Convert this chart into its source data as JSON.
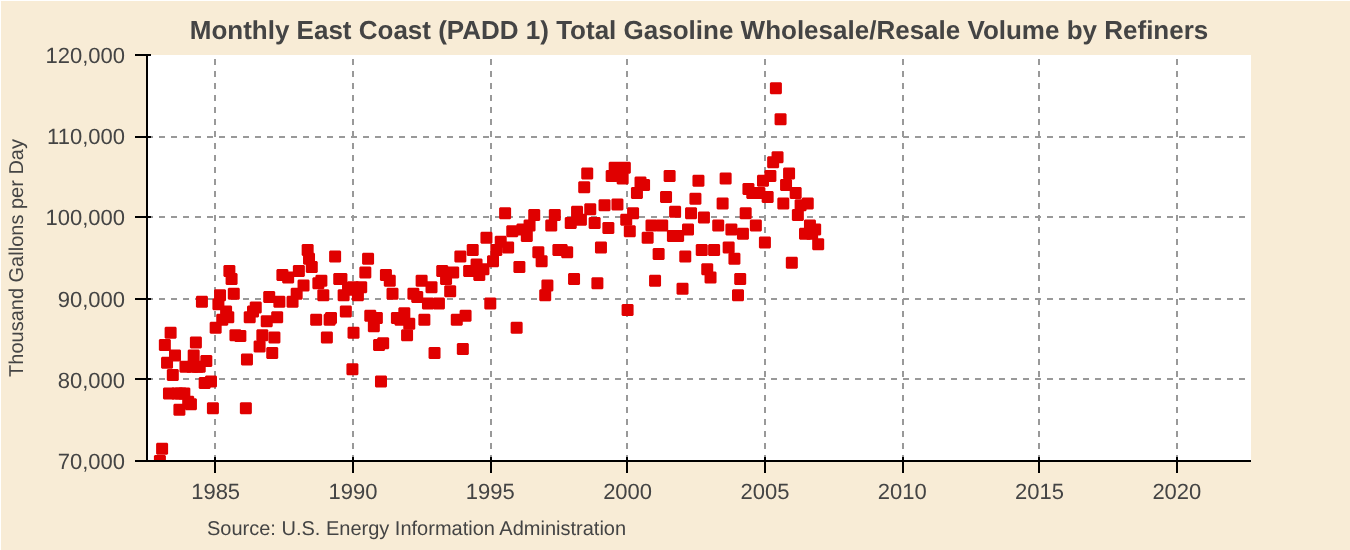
{
  "chart_data": {
    "type": "scatter",
    "title": "Monthly East Coast (PADD 1) Total Gasoline Wholesale/Resale Volume by Refiners",
    "ylabel": "Thousand Gallons per Day",
    "annotations": [
      "Source: U.S. Energy Information Administration"
    ],
    "marker": "square",
    "grid": true,
    "xlim": [
      1982.5,
      2022.7
    ],
    "ylim": [
      70000,
      120000
    ],
    "xticks": [
      1985,
      1990,
      1995,
      2000,
      2005,
      2010,
      2015,
      2020
    ],
    "yticks": [
      {
        "value": 70000,
        "label": "70,000"
      },
      {
        "value": 80000,
        "label": "80,000"
      },
      {
        "value": 90000,
        "label": "90,000"
      },
      {
        "value": 100000,
        "label": "100,000"
      },
      {
        "value": 110000,
        "label": "110,000"
      },
      {
        "value": 120000,
        "label": "120,000"
      }
    ],
    "series": [
      {
        "color": "#e00000",
        "x": [
          1982.97,
          1983.05,
          1983.15,
          1983.23,
          1983.3,
          1983.36,
          1983.44,
          1983.52,
          1983.6,
          1983.68,
          1983.72,
          1983.86,
          1983.9,
          1984.0,
          1984.1,
          1984.15,
          1984.2,
          1984.28,
          1984.34,
          1984.42,
          1984.5,
          1984.6,
          1984.66,
          1984.83,
          1984.9,
          1985.0,
          1985.1,
          1985.16,
          1985.24,
          1985.38,
          1985.46,
          1985.5,
          1985.58,
          1985.66,
          1985.72,
          1985.9,
          1986.1,
          1986.14,
          1986.24,
          1986.36,
          1986.46,
          1986.6,
          1986.7,
          1986.86,
          1986.95,
          1987.06,
          1987.14,
          1987.24,
          1987.32,
          1987.43,
          1987.64,
          1987.8,
          1987.95,
          1988.03,
          1988.2,
          1988.35,
          1988.4,
          1988.5,
          1988.66,
          1988.74,
          1988.85,
          1988.92,
          1989.05,
          1989.15,
          1989.2,
          1989.35,
          1989.5,
          1989.58,
          1989.66,
          1989.74,
          1989.82,
          1989.98,
          1990.0,
          1990.02,
          1990.18,
          1990.3,
          1990.45,
          1990.55,
          1990.63,
          1990.76,
          1990.87,
          1990.95,
          1991.02,
          1991.1,
          1991.2,
          1991.34,
          1991.44,
          1991.6,
          1991.73,
          1991.87,
          1991.97,
          1992.05,
          1992.2,
          1992.34,
          1992.5,
          1992.6,
          1992.73,
          1992.86,
          1992.97,
          1993.13,
          1993.25,
          1993.39,
          1993.54,
          1993.65,
          1993.78,
          1993.91,
          1994.0,
          1994.1,
          1994.23,
          1994.36,
          1994.5,
          1994.6,
          1994.75,
          1994.86,
          1995.0,
          1995.1,
          1995.22,
          1995.38,
          1995.54,
          1995.65,
          1995.8,
          1995.96,
          1996.06,
          1996.17,
          1996.33,
          1996.43,
          1996.6,
          1996.75,
          1996.87,
          1997.0,
          1997.08,
          1997.22,
          1997.35,
          1997.48,
          1997.6,
          1997.8,
          1997.93,
          1998.05,
          1998.16,
          1998.3,
          1998.42,
          1998.53,
          1998.64,
          1998.8,
          1998.9,
          1999.03,
          1999.16,
          1999.3,
          1999.42,
          1999.53,
          1999.63,
          1999.82,
          1999.9,
          1999.95,
          2000.0,
          2000.08,
          2000.2,
          2000.34,
          2000.47,
          2000.6,
          2000.73,
          2000.87,
          2001.0,
          2001.13,
          2001.26,
          2001.4,
          2001.53,
          2001.65,
          2001.73,
          2001.84,
          2002.0,
          2002.1,
          2002.2,
          2002.31,
          2002.47,
          2002.58,
          2002.7,
          2002.78,
          2002.9,
          2003.02,
          2003.15,
          2003.3,
          2003.46,
          2003.57,
          2003.68,
          2003.78,
          2003.89,
          2004.02,
          2004.1,
          2004.2,
          2004.3,
          2004.4,
          2004.54,
          2004.67,
          2004.8,
          2004.93,
          2005.0,
          2005.1,
          2005.2,
          2005.3,
          2005.4,
          2005.46,
          2005.57,
          2005.67,
          2005.77,
          2005.88,
          2005.98,
          2006.12,
          2006.2,
          2006.3,
          2006.46,
          2006.56,
          2006.64,
          2006.72,
          2006.83,
          2006.94
        ],
        "values": [
          70000,
          71500,
          84300,
          82100,
          78300,
          85800,
          80600,
          83000,
          78300,
          76300,
          78300,
          78300,
          81600,
          77300,
          77000,
          81600,
          83000,
          84600,
          81600,
          81600,
          89600,
          79600,
          82300,
          79800,
          76500,
          86400,
          89300,
          90400,
          87400,
          88400,
          87700,
          93400,
          92400,
          90600,
          85500,
          85400,
          76500,
          82500,
          87700,
          88400,
          88900,
          84100,
          85500,
          87200,
          90200,
          83300,
          85200,
          87700,
          89600,
          92900,
          92600,
          89600,
          90600,
          93400,
          91600,
          96000,
          94900,
          93900,
          87400,
          91900,
          92200,
          90400,
          85200,
          87400,
          87600,
          95200,
          92400,
          92400,
          90400,
          88400,
          91100,
          81300,
          91400,
          85800,
          90400,
          91400,
          93200,
          94900,
          87900,
          86600,
          87600,
          84300,
          79800,
          84500,
          92900,
          92200,
          90600,
          87600,
          87400,
          88200,
          85500,
          86900,
          90600,
          90200,
          92200,
          87400,
          89400,
          91400,
          83300,
          89400,
          93400,
          92400,
          90900,
          93200,
          87400,
          95200,
          83800,
          87900,
          93400,
          96000,
          94200,
          92900,
          93600,
          97500,
          89400,
          94600,
          96000,
          97000,
          100500,
          96300,
          98300,
          86400,
          93900,
          98500,
          97700,
          99000,
          100300,
          95700,
          94600,
          90400,
          91600,
          99000,
          100300,
          96000,
          96000,
          95700,
          99300,
          92400,
          100700,
          99700,
          103700,
          105400,
          101000,
          99300,
          91900,
          96300,
          101500,
          98700,
          105100,
          106100,
          101600,
          104800,
          106100,
          99700,
          88600,
          98300,
          100500,
          103000,
          104300,
          104000,
          97500,
          99000,
          92200,
          95500,
          99000,
          102500,
          105100,
          97700,
          100700,
          97700,
          91200,
          95200,
          98500,
          100500,
          102300,
          104500,
          96000,
          100000,
          93600,
          92600,
          96000,
          99000,
          101700,
          104800,
          96300,
          98500,
          94900,
          90400,
          92400,
          98000,
          100500,
          103500,
          103000,
          99000,
          103000,
          104500,
          96900,
          102500,
          105100,
          106800,
          115900,
          107400,
          112100,
          101700,
          104000,
          105400,
          94400,
          103000,
          100300,
          101500,
          98000,
          101700,
          99000,
          98000,
          98500,
          96700
        ]
      }
    ]
  }
}
